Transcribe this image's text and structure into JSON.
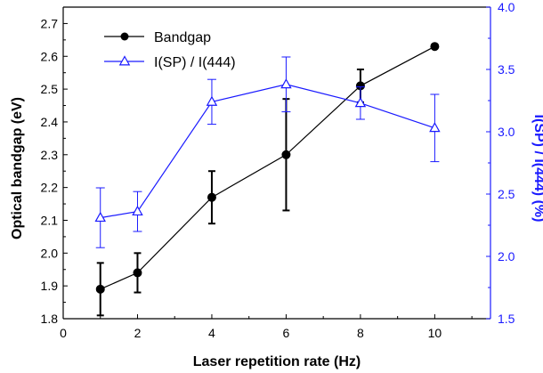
{
  "colors": {
    "bandgap": "#000000",
    "ratio": "#1a1aff",
    "frame": "#000000"
  },
  "chart_data": {
    "type": "line",
    "xlabel": "Laser repetition rate (Hz)",
    "ylabel": "Optical bandgap (eV)",
    "y2label": "I(SP) / I(444) (%)",
    "xlim": [
      0,
      11.5
    ],
    "ylim": [
      1.8,
      2.75
    ],
    "y2lim": [
      1.5,
      4.0
    ],
    "xticks": [
      0,
      2,
      4,
      6,
      8,
      10
    ],
    "xtick_labels": [
      "0",
      "2",
      "4",
      "6",
      "8",
      "10"
    ],
    "yticks": [
      1.8,
      1.9,
      2.0,
      2.1,
      2.2,
      2.3,
      2.4,
      2.5,
      2.6,
      2.7
    ],
    "ytick_labels": [
      "1.8",
      "1.9",
      "2.0",
      "2.1",
      "2.2",
      "2.3",
      "2.4",
      "2.5",
      "2.6",
      "2.7"
    ],
    "y2ticks": [
      1.5,
      2.0,
      2.5,
      3.0,
      3.5,
      4.0
    ],
    "y2tick_labels": [
      "1.5",
      "2.0",
      "2.5",
      "3.0",
      "3.5",
      "4.0"
    ],
    "grid": false,
    "legend_position": "top-left",
    "series": [
      {
        "name": "Bandgap",
        "axis": "left",
        "marker": "filled-circle",
        "x": [
          1,
          2,
          4,
          6,
          8,
          10
        ],
        "y": [
          1.89,
          1.94,
          2.17,
          2.3,
          2.51,
          2.63
        ],
        "err": [
          0.08,
          0.06,
          0.08,
          0.17,
          0.05,
          0.005
        ]
      },
      {
        "name": "I(SP) / I(444)",
        "axis": "right",
        "marker": "open-triangle",
        "x": [
          1,
          2,
          4,
          6,
          8,
          10
        ],
        "y": [
          2.31,
          2.36,
          3.24,
          3.38,
          3.23,
          3.03
        ],
        "err": [
          0.24,
          0.16,
          0.18,
          0.22,
          0.13,
          0.27
        ]
      }
    ]
  }
}
